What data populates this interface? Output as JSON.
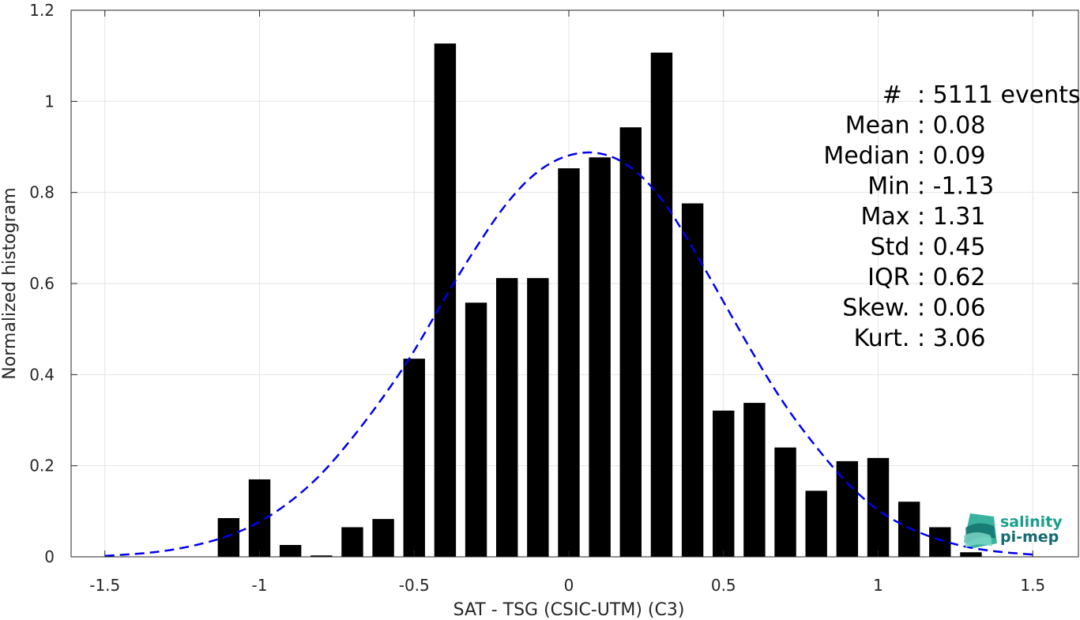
{
  "chart_data": {
    "type": "bar",
    "xlabel": "SAT - TSG (CSIC-UTM) (C3)",
    "ylabel": "Normalized histogram",
    "xlim": [
      -1.6,
      1.65
    ],
    "ylim": [
      0,
      1.2
    ],
    "xticks": [
      -1.5,
      -1,
      -0.5,
      0,
      0.5,
      1,
      1.5
    ],
    "xtick_labels": [
      "-1.5",
      "-1",
      "-0.5",
      "0",
      "0.5",
      "1",
      "1.5"
    ],
    "yticks": [
      0,
      0.2,
      0.4,
      0.6,
      0.8,
      1,
      1.2
    ],
    "ytick_labels": [
      "0",
      "0.2",
      "0.4",
      "0.6",
      "0.8",
      "1",
      "1.2"
    ],
    "grid": true,
    "bar_width": 0.07,
    "bar_color": "#000000",
    "bars": {
      "x": [
        -1.1,
        -1.0,
        -0.9,
        -0.8,
        -0.7,
        -0.6,
        -0.5,
        -0.4,
        -0.3,
        -0.2,
        -0.1,
        0.0,
        0.1,
        0.2,
        0.3,
        0.4,
        0.5,
        0.6,
        0.7,
        0.8,
        0.9,
        1.0,
        1.1,
        1.2,
        1.3
      ],
      "values": [
        0.085,
        0.17,
        0.026,
        0.003,
        0.065,
        0.083,
        0.435,
        1.127,
        0.558,
        0.612,
        0.612,
        0.853,
        0.877,
        0.943,
        1.107,
        0.776,
        0.321,
        0.338,
        0.24,
        0.145,
        0.21,
        0.217,
        0.121,
        0.065,
        0.01
      ]
    },
    "fit_curve": {
      "style": "dashed",
      "color": "#0000ee",
      "x": [
        -1.5,
        -1.4,
        -1.3,
        -1.2,
        -1.1,
        -1.0,
        -0.9,
        -0.8,
        -0.7,
        -0.6,
        -0.5,
        -0.4,
        -0.3,
        -0.2,
        -0.1,
        0.0,
        0.1,
        0.2,
        0.3,
        0.4,
        0.5,
        0.6,
        0.7,
        0.8,
        0.9,
        1.0,
        1.1,
        1.2,
        1.3,
        1.4,
        1.5
      ],
      "y": [
        0.002,
        0.006,
        0.013,
        0.026,
        0.045,
        0.075,
        0.12,
        0.18,
        0.26,
        0.35,
        0.45,
        0.57,
        0.68,
        0.78,
        0.85,
        0.885,
        0.89,
        0.86,
        0.79,
        0.68,
        0.56,
        0.44,
        0.33,
        0.24,
        0.16,
        0.1,
        0.062,
        0.036,
        0.019,
        0.01,
        0.005
      ]
    },
    "annotations": [
      {
        "key": "#  ",
        "value": ": 5111 events"
      },
      {
        "key": "Mean ",
        "value": ": 0.08"
      },
      {
        "key": "Median ",
        "value": ": 0.09"
      },
      {
        "key": "Min ",
        "value": ": -1.13"
      },
      {
        "key": "Max ",
        "value": ": 1.31"
      },
      {
        "key": "Std ",
        "value": ": 0.45"
      },
      {
        "key": "IQR ",
        "value": ": 0.62"
      },
      {
        "key": "Skew. ",
        "value": ": 0.06"
      },
      {
        "key": "Kurt. ",
        "value": ": 3.06"
      }
    ]
  },
  "logo": {
    "line1": "salinity",
    "line2": "pi-mep",
    "color": "#1a9e8c",
    "color_dark": "#146b70"
  }
}
